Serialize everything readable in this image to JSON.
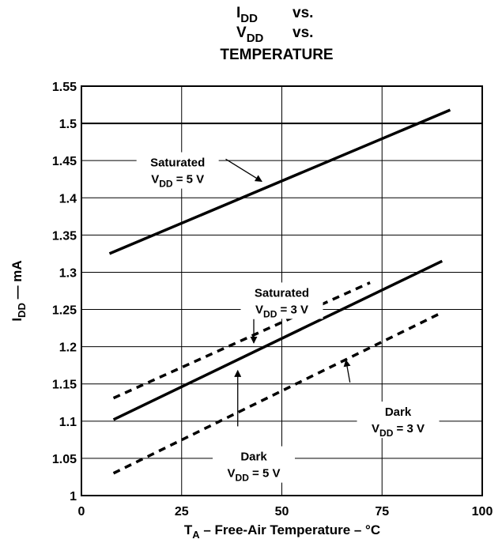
{
  "chart_data": {
    "type": "line",
    "title_lines": [
      {
        "main": "I",
        "sub": "DD",
        "rest": "vs."
      },
      {
        "main": "V",
        "sub": "DD",
        "rest": "vs."
      },
      {
        "main": "TEMPERATURE",
        "sub": "",
        "rest": ""
      }
    ],
    "xlabel": {
      "main": "T",
      "sub": "A",
      "rest": " – Free-Air Temperature – °C"
    },
    "ylabel": {
      "main": "I",
      "sub": "DD",
      "rest": " — mA"
    },
    "xlim": [
      0,
      100
    ],
    "ylim": [
      1,
      1.55
    ],
    "xticks": [
      "0",
      "25",
      "50",
      "75",
      "100"
    ],
    "yticks": [
      "1",
      "1.05",
      "1.1",
      "1.15",
      "1.2",
      "1.25",
      "1.3",
      "1.35",
      "1.4",
      "1.45",
      "1.5",
      "1.55"
    ],
    "grid": true,
    "series": [
      {
        "style": "solid",
        "x": [
          7,
          92
        ],
        "y": [
          1.325,
          1.518
        ]
      },
      {
        "style": "solid",
        "x": [
          8,
          90
        ],
        "y": [
          1.102,
          1.315
        ]
      },
      {
        "style": "dashed",
        "x": [
          8,
          72
        ],
        "y": [
          1.131,
          1.286
        ]
      },
      {
        "style": "dashed",
        "x": [
          8,
          90
        ],
        "y": [
          1.03,
          1.246
        ]
      }
    ],
    "annotations": [
      {
        "line1": "Saturated",
        "main": "V",
        "sub": "DD",
        "rest": " = 5 V",
        "tx": 24,
        "ty": 1.44,
        "arrow": {
          "from": [
            36,
            1.452
          ],
          "to": [
            45,
            1.422
          ]
        }
      },
      {
        "line1": "Saturated",
        "main": "V",
        "sub": "DD",
        "rest": " = 3 V",
        "tx": 50,
        "ty": 1.265,
        "arrow": {
          "from": [
            43,
            1.237
          ],
          "to": [
            43,
            1.205
          ]
        }
      },
      {
        "line1": "Dark",
        "main": "V",
        "sub": "DD",
        "rest": " = 5 V",
        "tx": 43,
        "ty": 1.045,
        "arrow": {
          "from": [
            39,
            1.093
          ],
          "to": [
            39,
            1.168
          ]
        }
      },
      {
        "line1": "Dark",
        "main": "V",
        "sub": "DD",
        "rest": " = 3 V",
        "tx": 79,
        "ty": 1.105,
        "arrow": {
          "from": [
            67,
            1.152
          ],
          "to": [
            66,
            1.182
          ]
        }
      }
    ]
  }
}
